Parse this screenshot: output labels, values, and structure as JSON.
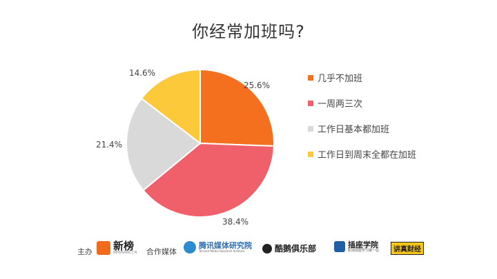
{
  "chart_data": {
    "type": "pie",
    "title": "你经常加班吗?",
    "slices": [
      {
        "label": "几乎不加班",
        "value": 25.6,
        "display": "25.6%",
        "color": "#F5701E"
      },
      {
        "label": "一周两三次",
        "value": 38.4,
        "display": "38.4%",
        "color": "#F0606A"
      },
      {
        "label": "工作日基本都加班",
        "value": 21.4,
        "display": "21.4%",
        "color": "#D9D9D9"
      },
      {
        "label": "工作日到周末全都在加班",
        "value": 14.6,
        "display": "14.6%",
        "color": "#FBC93A"
      }
    ],
    "legend_position": "right"
  },
  "footer": {
    "host_label": "主办",
    "host_logo": "新榜",
    "host_logo_sub": "NEWRANK.CN",
    "partner_label": "合作媒体",
    "partners": [
      {
        "name": "腾讯媒体研究院",
        "sub": "Tencent Media Research Institute",
        "icon": "tencent-media-logo"
      },
      {
        "name": "酷鹅俱乐部",
        "icon": "penguin-logo"
      },
      {
        "name": "插座学院",
        "sub": "职场技能学习第一站",
        "icon": "socket-logo"
      },
      {
        "name": "讲真财经",
        "icon": "badge-logo"
      }
    ]
  }
}
